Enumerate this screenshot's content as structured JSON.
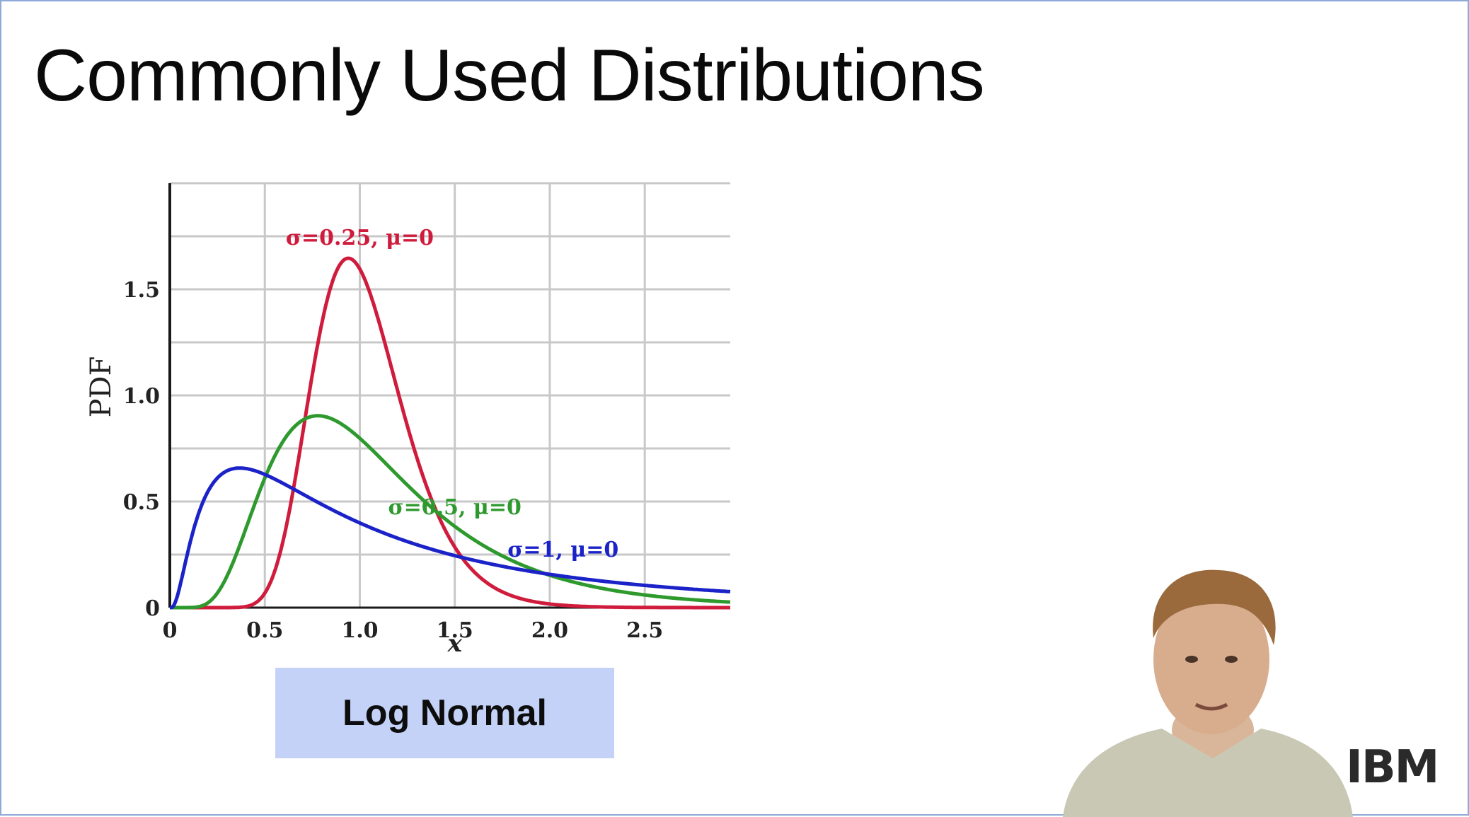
{
  "slide": {
    "title": "Commonly Used Distributions",
    "caption": "Log Normal",
    "logo_text": "IBM"
  },
  "chart_data": {
    "type": "line",
    "title": "",
    "xlabel": "x",
    "ylabel": "PDF",
    "xlim": [
      0,
      2.95
    ],
    "ylim": [
      0,
      2.0
    ],
    "x_ticks": [
      "0",
      "0.5",
      "1.0",
      "1.5",
      "2.0",
      "2.5"
    ],
    "x_tick_values": [
      0,
      0.5,
      1.0,
      1.5,
      2.0,
      2.5
    ],
    "y_ticks": [
      "0",
      "0.5",
      "1.0",
      "1.5"
    ],
    "y_tick_values": [
      0,
      0.5,
      1.0,
      1.5
    ],
    "grid": true,
    "series": [
      {
        "name": "σ=0.25, μ=0",
        "sigma": 0.25,
        "mu": 0,
        "color": "#d01c3c"
      },
      {
        "name": "σ=0.5, μ=0",
        "sigma": 0.5,
        "mu": 0,
        "color": "#2e9a2e"
      },
      {
        "name": "σ=1, μ=0",
        "sigma": 1,
        "mu": 0,
        "color": "#1a22c8"
      }
    ],
    "annotations": [
      {
        "series": 0,
        "text": "σ=0.25, μ=0",
        "x": 1.0,
        "y": 1.71
      },
      {
        "series": 1,
        "text": "σ=0.5, μ=0",
        "x": 1.5,
        "y": 0.44
      },
      {
        "series": 2,
        "text": "σ=1, μ=0",
        "x": 2.07,
        "y": 0.24
      }
    ]
  }
}
